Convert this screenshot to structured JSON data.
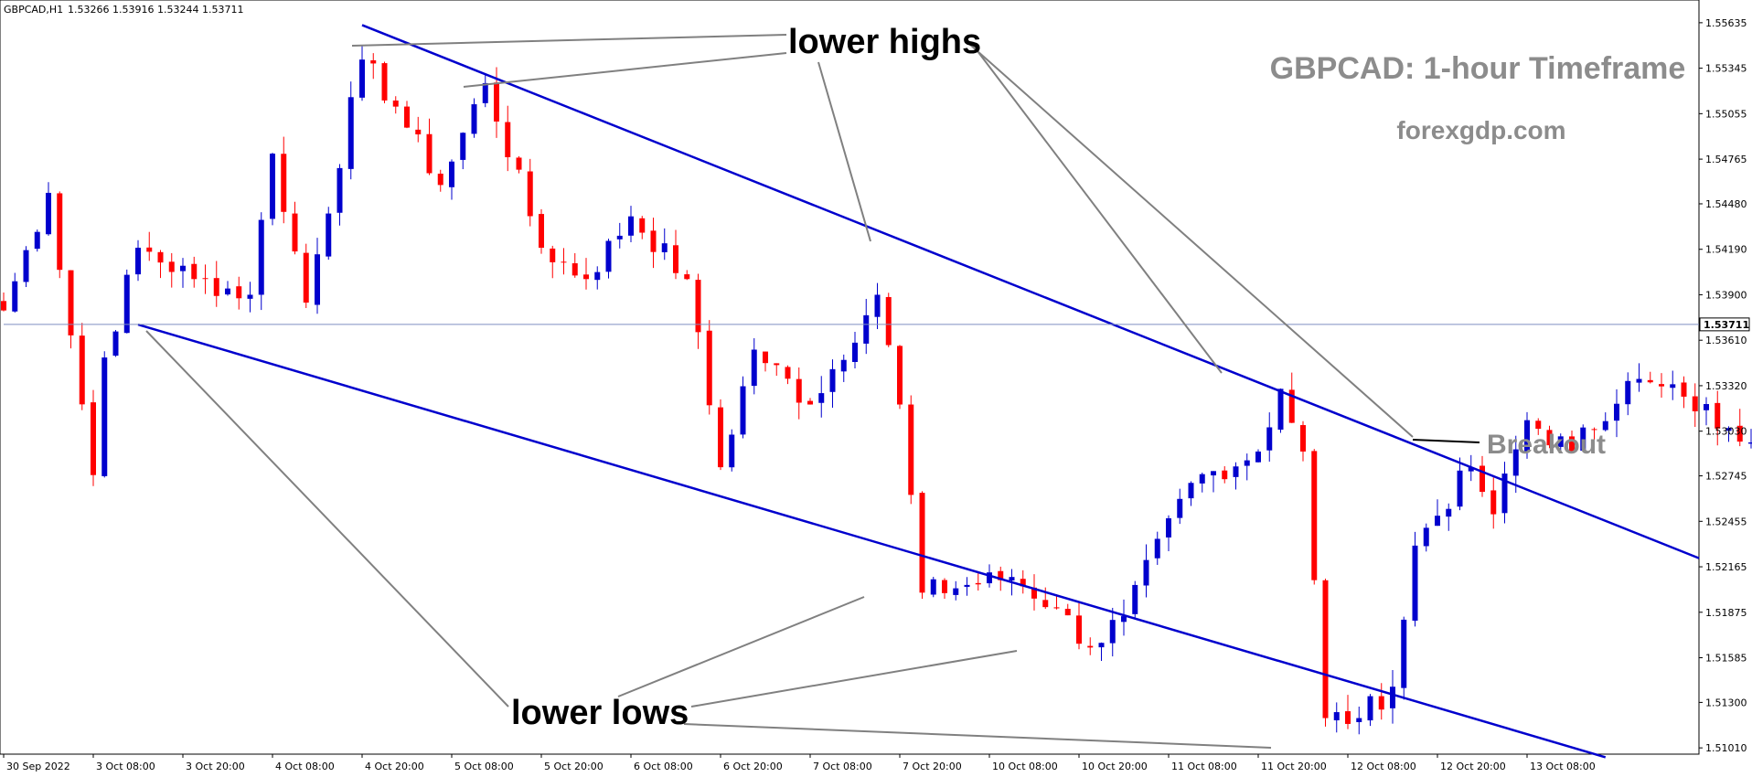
{
  "header": {
    "symbol": "GBPCAD,H1",
    "ohlc": "1.53266 1.53916 1.53244 1.53711"
  },
  "chart_data": {
    "type": "candlestick",
    "symbol": "GBPCAD",
    "timeframe": "H1",
    "ylim": [
      1.5097,
      1.5578
    ],
    "y_ticks": [
      "1.55635",
      "1.55345",
      "1.55055",
      "1.54765",
      "1.54480",
      "1.54190",
      "1.53900",
      "1.53610",
      "1.53320",
      "1.53030",
      "1.52745",
      "1.52455",
      "1.52165",
      "1.51875",
      "1.51585",
      "1.51300",
      "1.51010"
    ],
    "x_ticks": [
      "30 Sep 2022",
      "3 Oct 08:00",
      "3 Oct 20:00",
      "4 Oct 08:00",
      "4 Oct 20:00",
      "5 Oct 08:00",
      "5 Oct 20:00",
      "6 Oct 08:00",
      "6 Oct 20:00",
      "7 Oct 08:00",
      "7 Oct 20:00",
      "10 Oct 08:00",
      "10 Oct 20:00",
      "11 Oct 08:00",
      "11 Oct 20:00",
      "12 Oct 08:00",
      "12 Oct 20:00",
      "13 Oct 08:00"
    ],
    "bar_count": 165,
    "current_price": "1.53711",
    "current_price_value": 1.53711,
    "bull_color": "#0000cd",
    "bear_color": "#ff0000",
    "trendline_color": "#0000cd",
    "price_line_color": "#7f8fc0",
    "pivots": [
      {
        "i": 0,
        "p": 1.538
      },
      {
        "i": 4,
        "p": 1.5455
      },
      {
        "i": 8,
        "p": 1.5275
      },
      {
        "i": 9,
        "p": 1.535
      },
      {
        "i": 12,
        "p": 1.542
      },
      {
        "i": 17,
        "p": 1.54
      },
      {
        "i": 22,
        "p": 1.539
      },
      {
        "i": 24,
        "p": 1.548
      },
      {
        "i": 27,
        "p": 1.5385
      },
      {
        "i": 32,
        "p": 1.554
      },
      {
        "i": 35,
        "p": 1.551
      },
      {
        "i": 39,
        "p": 1.546
      },
      {
        "i": 43,
        "p": 1.5525
      },
      {
        "i": 48,
        "p": 1.542
      },
      {
        "i": 52,
        "p": 1.54
      },
      {
        "i": 56,
        "p": 1.544
      },
      {
        "i": 61,
        "p": 1.54
      },
      {
        "i": 64,
        "p": 1.528
      },
      {
        "i": 67,
        "p": 1.5355
      },
      {
        "i": 72,
        "p": 1.532
      },
      {
        "i": 78,
        "p": 1.539
      },
      {
        "i": 80,
        "p": 1.532
      },
      {
        "i": 82,
        "p": 1.52
      },
      {
        "i": 90,
        "p": 1.521
      },
      {
        "i": 94,
        "p": 1.519
      },
      {
        "i": 97,
        "p": 1.5165
      },
      {
        "i": 100,
        "p": 1.5185
      },
      {
        "i": 106,
        "p": 1.527
      },
      {
        "i": 112,
        "p": 1.529
      },
      {
        "i": 114,
        "p": 1.533
      },
      {
        "i": 116,
        "p": 1.529
      },
      {
        "i": 118,
        "p": 1.512
      },
      {
        "i": 121,
        "p": 1.512
      },
      {
        "i": 124,
        "p": 1.514
      },
      {
        "i": 126,
        "p": 1.523
      },
      {
        "i": 131,
        "p": 1.528
      },
      {
        "i": 133,
        "p": 1.525
      },
      {
        "i": 136,
        "p": 1.531
      },
      {
        "i": 140,
        "p": 1.529
      },
      {
        "i": 145,
        "p": 1.5335
      },
      {
        "i": 150,
        "p": 1.5325
      },
      {
        "i": 154,
        "p": 1.5305
      },
      {
        "i": 158,
        "p": 1.53
      },
      {
        "i": 162,
        "p": 1.532
      },
      {
        "i": 164,
        "p": 1.53711
      }
    ],
    "trendlines": [
      {
        "name": "upper-channel",
        "from": {
          "bar": 32,
          "price": 1.5562
        },
        "to": {
          "bar": 190,
          "price": 1.5222
        }
      },
      {
        "name": "lower-channel",
        "from": {
          "bar": 12,
          "price": 1.5371
        },
        "to": {
          "bar": 143,
          "price": 1.5095
        }
      },
      {
        "name": "price-level",
        "from": {
          "bar": 0,
          "price": 1.53711
        },
        "to": {
          "bar": 200,
          "price": 1.53711
        }
      }
    ]
  },
  "annotations": {
    "lower_highs": "lower highs",
    "lower_lows": "lower lows",
    "breakout": "Breakout",
    "title": "GBPCAD: 1-hour Timeframe",
    "site": "forexgdp.com"
  }
}
